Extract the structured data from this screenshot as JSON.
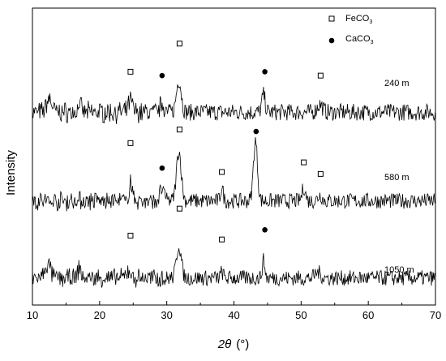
{
  "chart_data": {
    "type": "line",
    "xlabel_italic": "2θ",
    "xlabel_unit": "(°)",
    "ylabel": "Intensity",
    "xlim": [
      10,
      70
    ],
    "xticks": [
      "10",
      "20",
      "30",
      "40",
      "50",
      "60",
      "70"
    ],
    "y_ticks_shown": false,
    "grid": false,
    "legend_position": "top-right",
    "legend": [
      {
        "name": "FeCO",
        "sub": "3",
        "marker": "open-square"
      },
      {
        "name": "CaCO",
        "sub": "3",
        "marker": "filled-circle"
      }
    ],
    "series": [
      {
        "name": "240 m",
        "baseline": 5.0,
        "noise_amplitude": 0.22,
        "peaks": [
          {
            "x": 12.5,
            "height": 0.35,
            "width": 0.4
          },
          {
            "x": 17.0,
            "height": 0.25,
            "width": 0.2
          },
          {
            "x": 24.6,
            "height": 0.3,
            "width": 0.3
          },
          {
            "x": 29.3,
            "height": 0.25,
            "width": 0.3
          },
          {
            "x": 31.8,
            "height": 0.85,
            "width": 0.35
          },
          {
            "x": 44.4,
            "height": 0.45,
            "width": 0.25
          },
          {
            "x": 52.8,
            "height": 0.2,
            "width": 0.4
          }
        ],
        "markers": [
          {
            "x": 24.6,
            "y": 6.05,
            "symbol": "open-square"
          },
          {
            "x": 29.3,
            "y": 5.95,
            "symbol": "filled-circle"
          },
          {
            "x": 31.9,
            "y": 6.78,
            "symbol": "open-square"
          },
          {
            "x": 44.6,
            "y": 6.05,
            "symbol": "filled-circle"
          },
          {
            "x": 52.9,
            "y": 5.95,
            "symbol": "open-square"
          }
        ]
      },
      {
        "name": "580 m",
        "baseline": 2.7,
        "noise_amplitude": 0.2,
        "peaks": [
          {
            "x": 24.6,
            "height": 0.55,
            "width": 0.2
          },
          {
            "x": 29.3,
            "height": 0.3,
            "width": 0.3
          },
          {
            "x": 31.8,
            "height": 1.3,
            "width": 0.35
          },
          {
            "x": 38.2,
            "height": 0.35,
            "width": 0.2
          },
          {
            "x": 43.2,
            "height": 1.55,
            "width": 0.3
          },
          {
            "x": 50.4,
            "height": 0.35,
            "width": 0.25
          },
          {
            "x": 52.8,
            "height": 0.15,
            "width": 0.3
          }
        ],
        "markers": [
          {
            "x": 24.6,
            "y": 4.2,
            "symbol": "open-square"
          },
          {
            "x": 29.3,
            "y": 3.55,
            "symbol": "filled-circle"
          },
          {
            "x": 31.9,
            "y": 4.55,
            "symbol": "open-square"
          },
          {
            "x": 38.2,
            "y": 3.45,
            "symbol": "open-square"
          },
          {
            "x": 43.3,
            "y": 4.5,
            "symbol": "filled-circle"
          },
          {
            "x": 50.4,
            "y": 3.7,
            "symbol": "open-square"
          },
          {
            "x": 52.9,
            "y": 3.4,
            "symbol": "open-square"
          }
        ]
      },
      {
        "name": "1050 m",
        "baseline": 0.7,
        "noise_amplitude": 0.2,
        "peaks": [
          {
            "x": 12.3,
            "height": 0.35,
            "width": 0.4
          },
          {
            "x": 17.0,
            "height": 0.3,
            "width": 0.2
          },
          {
            "x": 24.3,
            "height": 0.2,
            "width": 0.3
          },
          {
            "x": 31.8,
            "height": 0.85,
            "width": 0.35
          },
          {
            "x": 38.2,
            "height": 0.15,
            "width": 0.2
          },
          {
            "x": 44.4,
            "height": 0.45,
            "width": 0.2
          },
          {
            "x": 52.5,
            "height": 0.15,
            "width": 0.4
          }
        ],
        "markers": [
          {
            "x": 24.6,
            "y": 1.8,
            "symbol": "open-square"
          },
          {
            "x": 31.9,
            "y": 2.5,
            "symbol": "open-square"
          },
          {
            "x": 38.2,
            "y": 1.7,
            "symbol": "open-square"
          },
          {
            "x": 44.6,
            "y": 1.95,
            "symbol": "filled-circle"
          }
        ]
      }
    ],
    "ylim": [
      0,
      7.7
    ],
    "colors": {
      "line": "#000000",
      "axis": "#000000",
      "background": "#ffffff"
    }
  }
}
